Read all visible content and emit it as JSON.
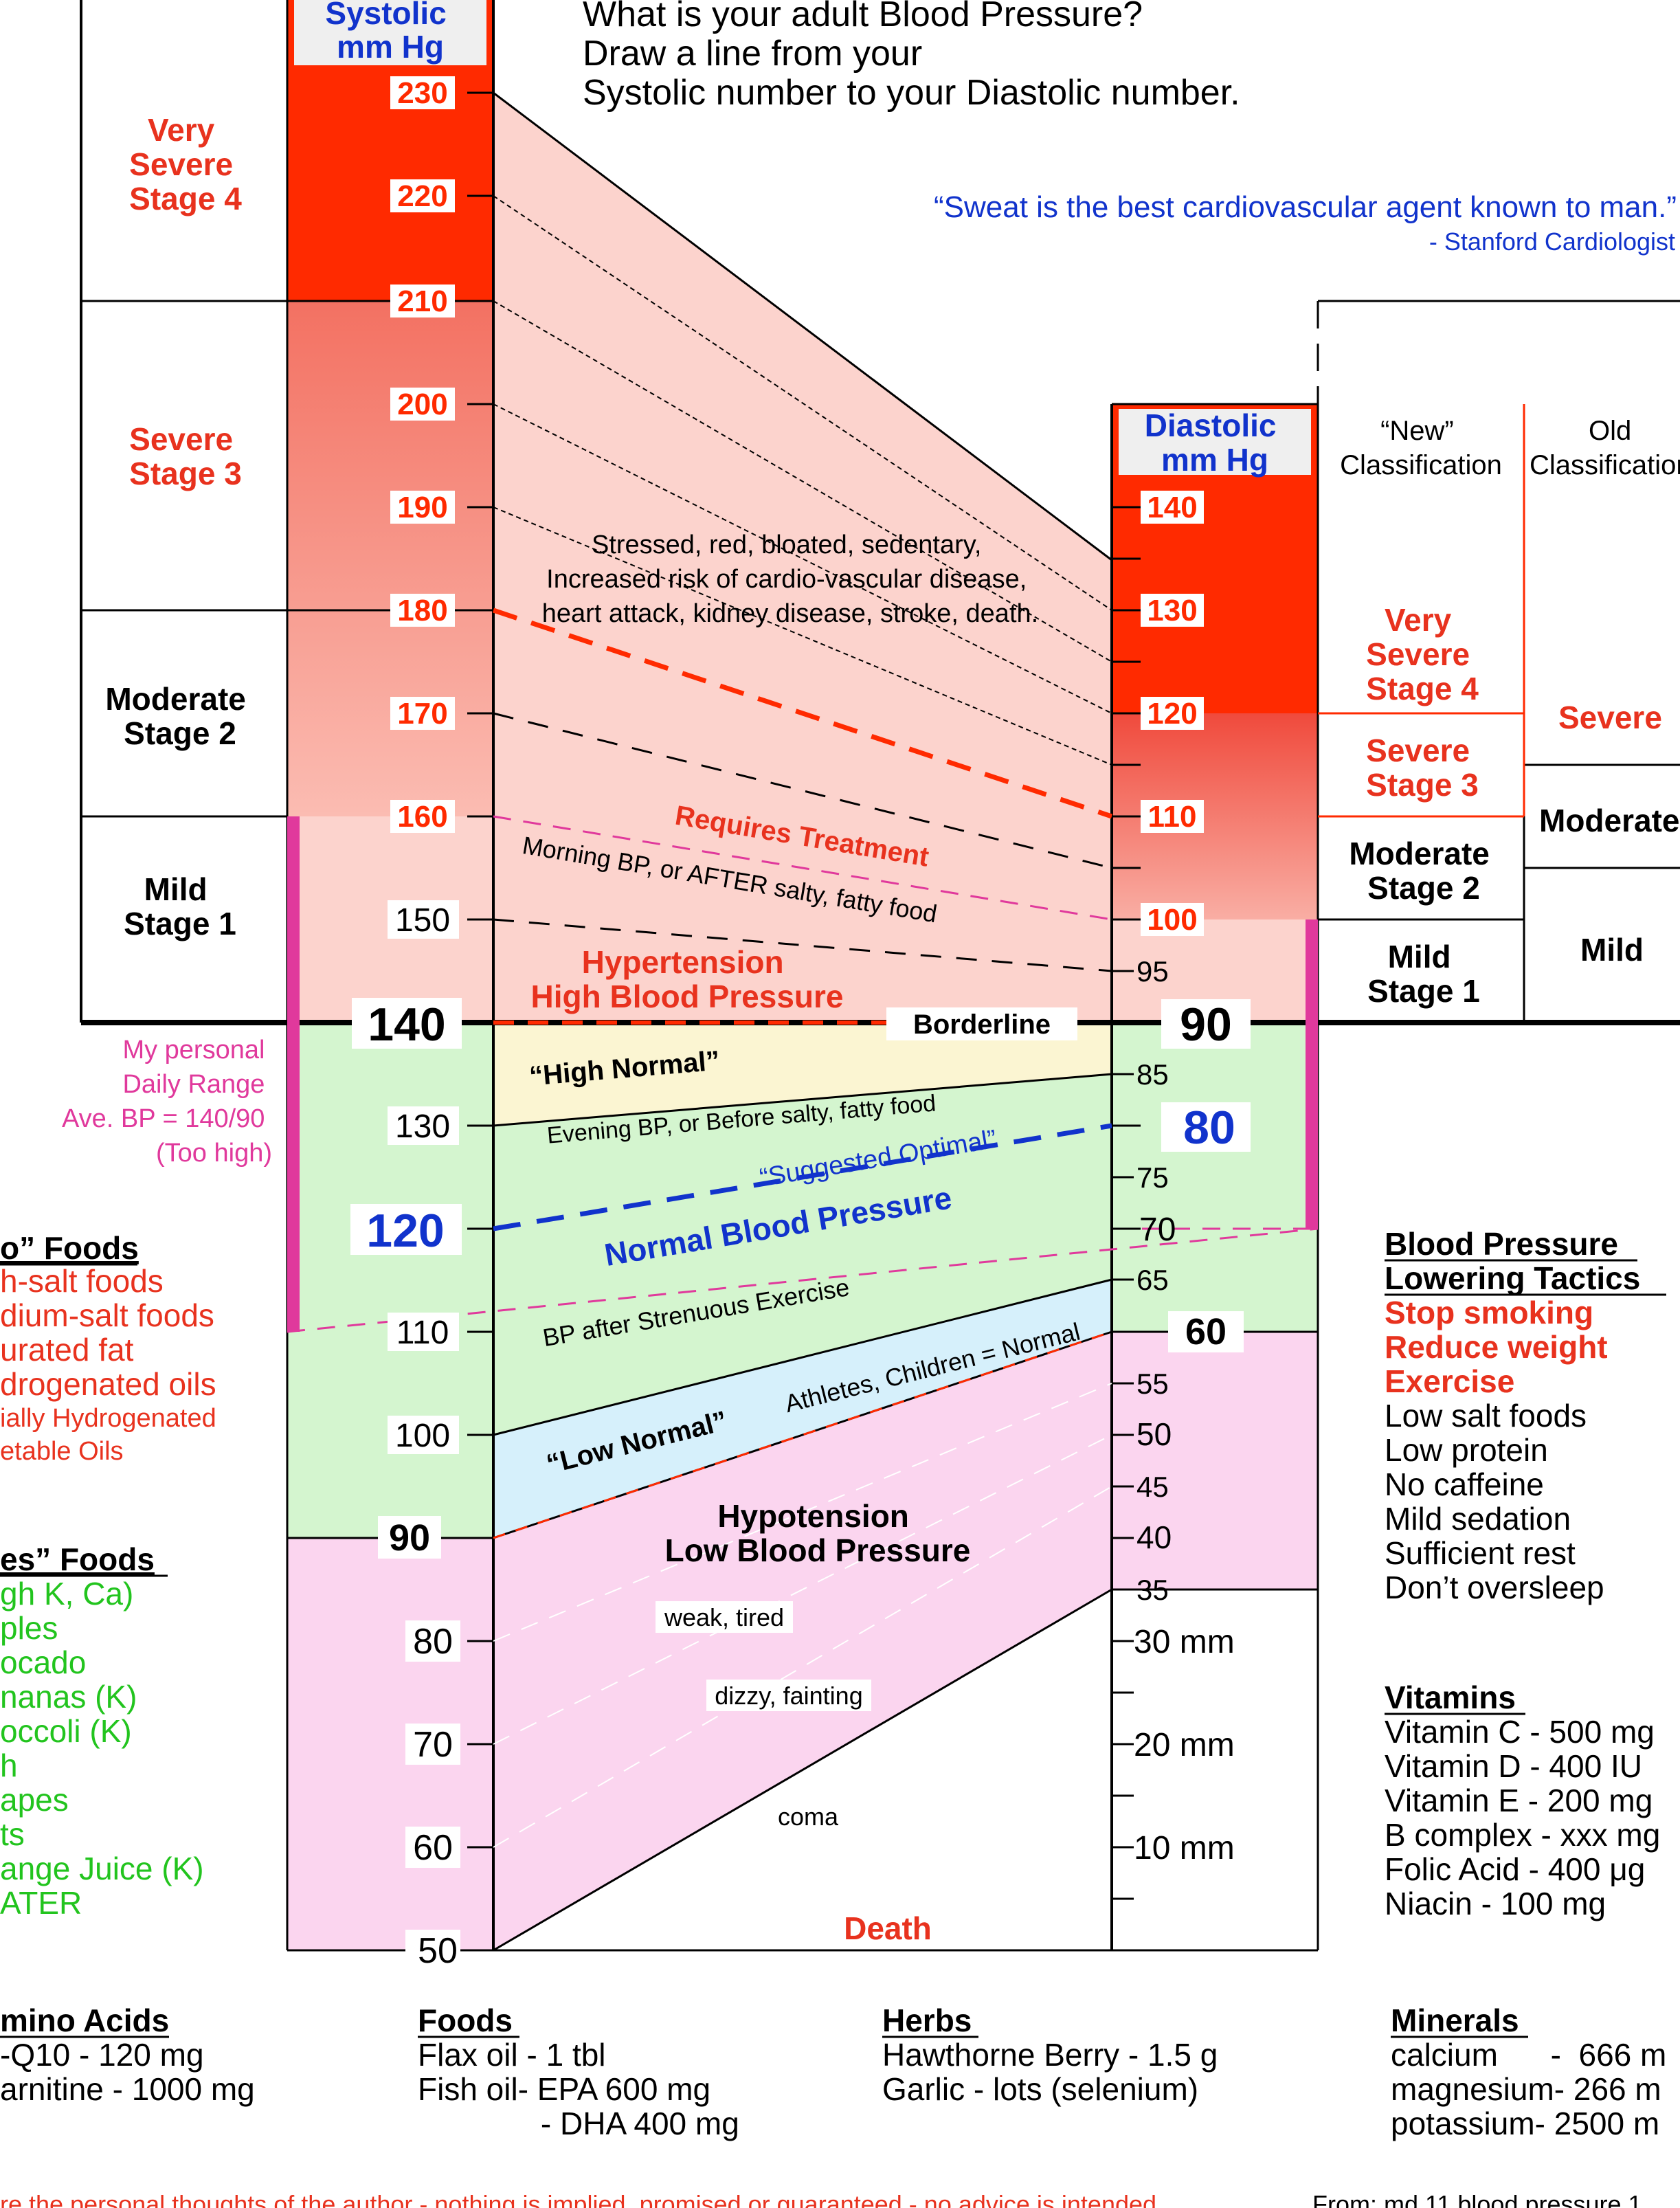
{
  "header": {
    "question_lines": [
      "What is your adult Blood Pressure?",
      "Draw a line from your",
      "Systolic number to your Diastolic number."
    ],
    "quote": "“Sweat is the best cardiovascular agent known to man.”",
    "quote_attribution": "- Stanford Cardiologist"
  },
  "systolic_scale": {
    "title_lines": [
      "Systolic",
      "mm Hg"
    ],
    "ticks_boxed": [
      "230",
      "220",
      "210",
      "200",
      "190",
      "180",
      "170",
      "160"
    ],
    "ticks_plain": [
      "150",
      "130",
      "110",
      "100",
      "80",
      "70",
      "60",
      "50"
    ],
    "tick_140": "140",
    "tick_120": "120",
    "tick_90": "90"
  },
  "diastolic_scale": {
    "title_lines": [
      "Diastolic",
      "mm Hg"
    ],
    "ticks_boxed": [
      "140",
      "130",
      "120",
      "110",
      "100"
    ],
    "ticks_plain": [
      "95",
      "85",
      "75",
      "70",
      "65",
      "55",
      "50",
      "45",
      "40",
      "35",
      "30 mm",
      "20 mm",
      "10 mm"
    ],
    "tick_90": "90",
    "tick_80": "80",
    "tick_60": "60"
  },
  "left_stages": [
    {
      "lines": [
        "Very",
        "Severe",
        "Stage 4"
      ],
      "color": "#e8321e"
    },
    {
      "lines": [
        "Severe",
        "Stage 3"
      ],
      "color": "#e8321e"
    },
    {
      "lines": [
        "Moderate",
        "Stage 2"
      ],
      "color": "#000000"
    },
    {
      "lines": [
        "Mild",
        "Stage 1"
      ],
      "color": "#000000"
    }
  ],
  "personal_range": {
    "lines": [
      "My personal",
      "Daily Range",
      "Ave. BP = 140/90",
      "(Too high)"
    ],
    "color": "#e0399c"
  },
  "chart_labels": {
    "stressed": [
      "Stressed, red, bloated, sedentary,",
      "Increased risk of cardio-vascular disease,",
      "heart attack, kidney disease, stroke, death."
    ],
    "requires_treatment": "Requires Treatment",
    "morning_bp": "Morning BP, or AFTER salty, fatty food",
    "hypertension": [
      "Hypertension",
      "High  Blood  Pressure"
    ],
    "borderline": "Borderline",
    "high_normal": "“High Normal”",
    "evening_bp": "Evening BP, or Before salty, fatty food",
    "suggested_optimal": "“Suggested Optimal”",
    "normal_bp": "Normal Blood Pressure",
    "after_exercise": "BP after Strenuous Exercise",
    "athletes": "Athletes, Children = Normal",
    "low_normal": "“Low Normal”",
    "hypotension": [
      "Hypotension",
      "Low  Blood  Pressure"
    ],
    "weak": "weak, tired",
    "dizzy": "dizzy, fainting",
    "coma": "coma",
    "death": "Death"
  },
  "classification": {
    "new_header": [
      "“New”",
      "Classification"
    ],
    "old_header": [
      "Old",
      "Classification"
    ],
    "new_stages": [
      {
        "lines": [
          "Very",
          "Severe",
          "Stage 4"
        ],
        "color": "#e8321e"
      },
      {
        "lines": [
          "Severe",
          "Stage 3"
        ],
        "color": "#e8321e"
      },
      {
        "lines": [
          "Moderate",
          "Stage 2"
        ],
        "color": "#000000"
      },
      {
        "lines": [
          "Mild",
          "Stage 1"
        ],
        "color": "#000000"
      }
    ],
    "old_stages": [
      {
        "label": "Severe",
        "color": "#e8321e"
      },
      {
        "label": "Moderate",
        "color": "#000000"
      },
      {
        "label": "Mild",
        "color": "#000000"
      }
    ]
  },
  "no_foods": {
    "title": "o” Foods",
    "items": [
      "h-salt foods",
      "dium-salt foods",
      "urated fat",
      "drogenated oils",
      "ially Hydrogenated",
      "etable Oils"
    ]
  },
  "yes_foods": {
    "title": "es” Foods",
    "items": [
      "gh K, Ca)",
      "ples",
      "ocado",
      "nanas (K)",
      "occoli (K)",
      "h",
      "apes",
      "ts",
      "ange Juice (K)",
      "ATER"
    ]
  },
  "tactics": {
    "title_lines": [
      "Blood Pressure",
      "Lowering Tactics"
    ],
    "red_items": [
      "Stop smoking",
      "Reduce weight",
      "Exercise"
    ],
    "items": [
      "Low salt foods",
      "Low protein",
      "No caffeine",
      "Mild sedation",
      "Sufficient rest",
      "Don’t oversleep"
    ]
  },
  "vitamins": {
    "title": "Vitamins",
    "items": [
      "Vitamin C  - 500 mg",
      "Vitamin D  - 400 IU",
      "Vitamin E  - 200 mg",
      "B complex - xxx mg",
      "Folic Acid  - 400 μg",
      "Niacin       - 100 mg"
    ]
  },
  "amino_acids": {
    "title": "mino Acids",
    "items": [
      "-Q10  -      120 mg",
      "arnitine - 1000 mg"
    ]
  },
  "foods": {
    "title": "Foods",
    "items": [
      "Flax oil   -   1 tbl",
      "Fish oil- EPA 600 mg",
      "              - DHA 400 mg"
    ]
  },
  "herbs": {
    "title": "Herbs",
    "items": [
      "Hawthorne Berry - 1.5 g",
      "Garlic - lots (selenium)"
    ]
  },
  "minerals": {
    "title": "Minerals",
    "items": [
      "calcium      -  666 m",
      "magnesium- 266 m",
      "potassium- 2500 m"
    ]
  },
  "footer": {
    "disclaimer": "re the personal thoughts of the author - nothing is implied, promised or guaranteed - no advice is intended",
    "source": "From: md 11 blood pressure 1"
  },
  "colors": {
    "red": "#ff2a00",
    "text_red": "#e8321e",
    "blue": "#1133cc",
    "green": "#22c41e",
    "magenta": "#e0399c",
    "pink_zone": "#fcd3cd",
    "green_zone": "#d4f5cf",
    "yellow_zone": "#fbf5d2",
    "cyan_zone": "#d6f0fb",
    "hypo_zone": "#fbd5ef"
  }
}
